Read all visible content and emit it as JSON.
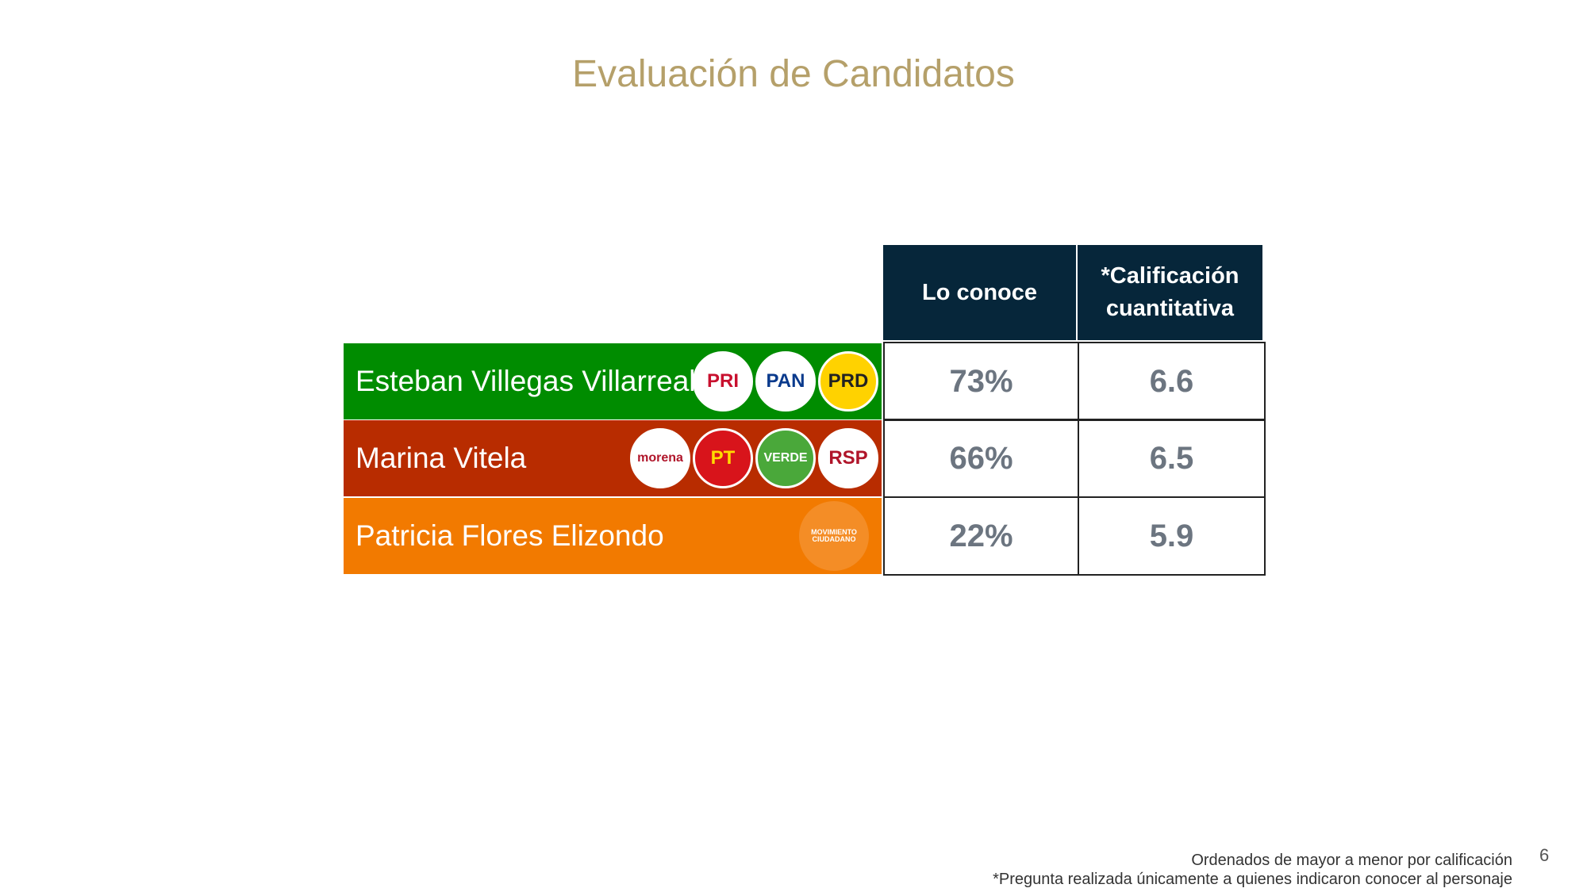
{
  "title": "Evaluación de Candidatos",
  "table": {
    "headers": [
      "Lo conoce",
      "*Calificación cuantitativa"
    ],
    "rows": [
      {
        "name": "Esteban Villegas Villarreal",
        "color": "#008c00",
        "logos": [
          "PRI",
          "PAN",
          "PRD"
        ],
        "cells": [
          "73%",
          "6.6"
        ]
      },
      {
        "name": "Marina Vitela",
        "color": "#b82c00",
        "logos": [
          "morena",
          "PT",
          "VERDE",
          "RSP"
        ],
        "cells": [
          "66%",
          "6.5"
        ]
      },
      {
        "name": "Patricia Flores Elizondo",
        "color": "#f27a00",
        "logos": [
          "MOVIMIENTO CIUDADANO"
        ],
        "cells": [
          "22%",
          "5.9"
        ]
      }
    ]
  },
  "footnotes": [
    "Ordenados de mayor a menor por calificación",
    "*Pregunta realizada únicamente a quienes indicaron conocer al personaje"
  ],
  "page_number": "6"
}
